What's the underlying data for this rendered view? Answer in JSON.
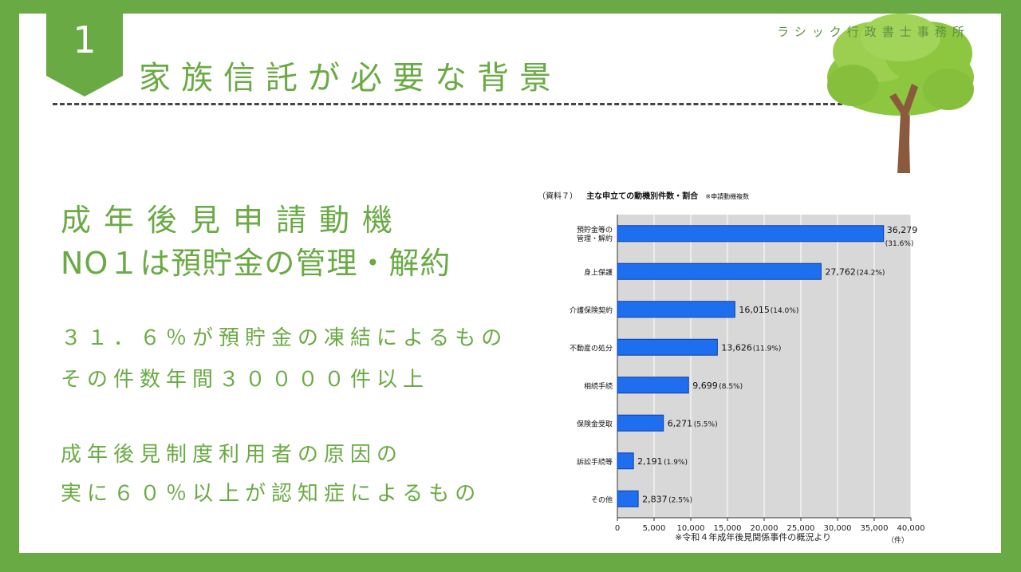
{
  "header": {
    "number": "1",
    "title": "家族信託が必要な背景",
    "company": "ラシック行政書士事務所"
  },
  "headline": {
    "line1": "成年後見申請動機",
    "line2": "NO１は預貯金の管理・解約"
  },
  "body": {
    "p1_line1": "３１．６％が預貯金の凍結によるもの",
    "p1_line2": "その件数年間３００００件以上",
    "p2_line1": "成年後見制度利用者の原因の",
    "p2_line2": "実に６０％以上が認知症によるもの"
  },
  "colors": {
    "green": "#6aaa44",
    "bar": "#1e6ef0",
    "plot_bg": "#d8d8d8"
  },
  "icons": [
    "tree-illustration"
  ],
  "chart_data": {
    "type": "bar",
    "orientation": "horizontal",
    "title_prefix": "（資料７）",
    "title": "主な申立ての動機別件数・割合",
    "note": "※申請動機複数",
    "categories": [
      [
        "預貯金等の",
        "管理・解約"
      ],
      [
        "身上保護"
      ],
      [
        "介護保険契約"
      ],
      [
        "不動産の処分"
      ],
      [
        "相続手続"
      ],
      [
        "保険金受取"
      ],
      [
        "訴訟手続等"
      ],
      [
        "その他"
      ]
    ],
    "values": [
      36279,
      27762,
      16015,
      13626,
      9699,
      6271,
      2191,
      2837
    ],
    "value_labels": [
      "36,279",
      "27,762",
      "16,015",
      "13,626",
      "9,699",
      "6,271",
      "2,191",
      "2,837"
    ],
    "percent_labels": [
      "(31.6%)",
      "(24.2%)",
      "(14.0%)",
      "(11.9%)",
      "(8.5%)",
      "(5.5%)",
      "(1.9%)",
      "(2.5%)"
    ],
    "xlim": [
      0,
      40000
    ],
    "xticks": [
      "0",
      "5,000",
      "10,000",
      "15,000",
      "20,000",
      "25,000",
      "30,000",
      "35,000",
      "40,000"
    ],
    "xunit": "（件）",
    "grid": true,
    "source": "※令和４年成年後見関係事件の概況より"
  }
}
